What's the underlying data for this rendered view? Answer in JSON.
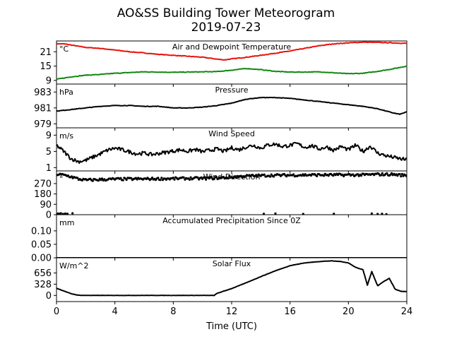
{
  "title_line1": "AO&SS Building Tower Meteorogram",
  "title_line2": "2019-07-23",
  "x_axis": {
    "label": "Time (UTC)",
    "range": [
      0,
      24
    ],
    "ticks": [
      "0",
      "4",
      "8",
      "12",
      "16",
      "20",
      "24"
    ]
  },
  "colors": {
    "air_temp": "#e8120c",
    "dewpoint": "#118811",
    "default": "#000000"
  },
  "chart_data": [
    {
      "type": "line",
      "title": "Air and Dewpoint Temperature",
      "ylabel": "°C",
      "ylim": [
        7.5,
        25.5
      ],
      "yticks": [
        "21",
        "15",
        "9"
      ],
      "ytick_values": [
        21,
        15,
        9
      ],
      "series": [
        {
          "name": "Air Temperature",
          "color": "#e8120c",
          "x": [
            0,
            0.5,
            1,
            2,
            3,
            4,
            5,
            6,
            7,
            8,
            9,
            10,
            11,
            11.5,
            12,
            13,
            14,
            15,
            16,
            17,
            18,
            19,
            20,
            21,
            22,
            23,
            24
          ],
          "y": [
            24.3,
            24.3,
            23.8,
            22.8,
            22.4,
            21.7,
            21.0,
            20.5,
            19.9,
            19.5,
            19.1,
            18.7,
            17.9,
            17.6,
            18.0,
            18.7,
            19.5,
            20.4,
            21.3,
            22.4,
            23.5,
            24.3,
            24.7,
            25.0,
            24.9,
            24.7,
            24.5
          ]
        },
        {
          "name": "Dewpoint",
          "color": "#118811",
          "x": [
            0,
            1,
            2,
            3,
            4,
            5,
            6,
            7,
            8,
            9,
            10,
            11,
            12,
            13,
            14,
            15,
            16,
            17,
            18,
            19,
            20,
            21,
            22,
            23,
            24
          ],
          "y": [
            9.5,
            10.5,
            11.2,
            11.5,
            12.0,
            12.3,
            12.6,
            12.5,
            12.4,
            12.5,
            12.6,
            12.7,
            13.3,
            14.0,
            13.5,
            12.8,
            12.5,
            12.5,
            12.6,
            12.2,
            11.8,
            12.0,
            12.8,
            13.8,
            15.0
          ]
        }
      ]
    },
    {
      "type": "line",
      "title": "Pressure",
      "ylabel": "hPa",
      "ylim": [
        978.5,
        984.0
      ],
      "yticks": [
        "983",
        "981",
        "979"
      ],
      "ytick_values": [
        983,
        981,
        979
      ],
      "series": [
        {
          "name": "Pressure",
          "color": "#000000",
          "x": [
            0,
            1,
            2,
            3,
            4,
            5,
            6,
            7,
            8,
            9,
            10,
            11,
            12,
            13,
            14,
            15,
            16,
            17,
            18,
            19,
            20,
            21,
            22,
            23,
            23.5,
            24
          ],
          "y": [
            980.6,
            980.8,
            981.0,
            981.2,
            981.3,
            981.3,
            981.2,
            981.2,
            981.0,
            981.0,
            981.1,
            981.3,
            981.6,
            982.1,
            982.3,
            982.3,
            982.2,
            982.0,
            981.8,
            981.6,
            981.4,
            981.2,
            980.9,
            980.4,
            980.2,
            980.5
          ]
        }
      ]
    },
    {
      "type": "line",
      "title": "Wind Speed",
      "ylabel": "m/s",
      "ylim": [
        0.2,
        10.8
      ],
      "yticks": [
        "9",
        "5",
        "1"
      ],
      "ytick_values": [
        9,
        5,
        1
      ],
      "series": [
        {
          "name": "Wind Speed",
          "color": "#000000",
          "x": [
            0,
            0.5,
            1,
            1.5,
            2,
            2.5,
            3,
            3.5,
            4,
            4.5,
            5,
            5.5,
            6,
            6.5,
            7,
            7.5,
            8,
            8.5,
            9,
            9.5,
            10,
            10.5,
            11,
            11.5,
            12,
            12.5,
            13,
            13.5,
            14,
            14.5,
            15,
            15.5,
            16,
            16.5,
            17,
            17.5,
            18,
            18.5,
            19,
            19.5,
            20,
            20.5,
            21,
            21.5,
            22,
            22.5,
            23,
            23.5,
            24
          ],
          "y": [
            6.5,
            5.0,
            3.2,
            2.5,
            2.8,
            3.6,
            4.4,
            5.3,
            5.8,
            5.4,
            4.9,
            4.4,
            4.6,
            4.2,
            4.5,
            4.8,
            5.1,
            5.4,
            5.0,
            5.5,
            4.9,
            5.3,
            5.6,
            5.0,
            5.9,
            5.4,
            6.1,
            6.5,
            5.8,
            6.6,
            6.8,
            6.2,
            6.5,
            6.9,
            6.0,
            6.4,
            5.6,
            6.1,
            5.3,
            6.2,
            5.4,
            6.5,
            5.0,
            6.3,
            4.6,
            4.0,
            3.6,
            3.2,
            2.9
          ]
        }
      ]
    },
    {
      "type": "scatter",
      "title": "Wind Direction",
      "ylabel": "°",
      "ylim": [
        0,
        380
      ],
      "yticks": [
        "270",
        "180",
        "90",
        "0"
      ],
      "ytick_values": [
        270,
        180,
        90,
        0
      ],
      "series": [
        {
          "name": "Wind Direction",
          "color": "#000000",
          "x": [
            0,
            0.5,
            1,
            1.5,
            2,
            3,
            4,
            5,
            6,
            7,
            8,
            9,
            10,
            11,
            12,
            12.5,
            13,
            14,
            15,
            16,
            17,
            18,
            19,
            20,
            21,
            22,
            23,
            24
          ],
          "y": [
            350,
            345,
            330,
            310,
            300,
            305,
            308,
            310,
            310,
            312,
            313,
            315,
            315,
            318,
            325,
            330,
            335,
            340,
            342,
            343,
            345,
            345,
            345,
            345,
            345,
            350,
            350,
            340
          ],
          "outlier_x": [
            0.1,
            0.2,
            0.3,
            0.45,
            0.6,
            0.75,
            1.1,
            14.2,
            15.0,
            16.9,
            19.0,
            21.6,
            22.0,
            22.3,
            22.6
          ],
          "outlier_y": [
            10,
            8,
            12,
            6,
            10,
            8,
            12,
            8,
            10,
            6,
            8,
            10,
            6,
            8,
            4
          ]
        }
      ]
    },
    {
      "type": "line",
      "title": "Accumulated Precipitation Since 0Z",
      "ylabel": "mm",
      "ylim": [
        0,
        0.16
      ],
      "yticks": [
        "0.10",
        "0.05",
        "0.00"
      ],
      "ytick_values": [
        0.1,
        0.05,
        0.0
      ],
      "series": [
        {
          "name": "Precipitation",
          "color": "#000000",
          "x": [
            0,
            24
          ],
          "y": [
            0,
            0
          ]
        }
      ]
    },
    {
      "type": "line",
      "title": "Solar Flux",
      "ylabel": "W/m^2",
      "ylim": [
        -180,
        1100
      ],
      "yticks": [
        "656",
        "328",
        "0"
      ],
      "ytick_values": [
        656,
        328,
        0
      ],
      "series": [
        {
          "name": "Solar Flux",
          "color": "#000000",
          "x": [
            0,
            0.5,
            1,
            1.5,
            2,
            3,
            4,
            6,
            8,
            10,
            10.8,
            11,
            12,
            13,
            14,
            15,
            16,
            17,
            18,
            18.8,
            19.5,
            20,
            20.5,
            21,
            21.3,
            21.6,
            22,
            22.4,
            22.8,
            23.2,
            23.6,
            24
          ],
          "y": [
            210,
            130,
            50,
            5,
            0,
            0,
            0,
            0,
            0,
            0,
            0,
            60,
            200,
            370,
            550,
            720,
            870,
            950,
            990,
            1010,
            990,
            950,
            820,
            750,
            300,
            700,
            280,
            400,
            500,
            180,
            120,
            110
          ]
        }
      ]
    }
  ]
}
